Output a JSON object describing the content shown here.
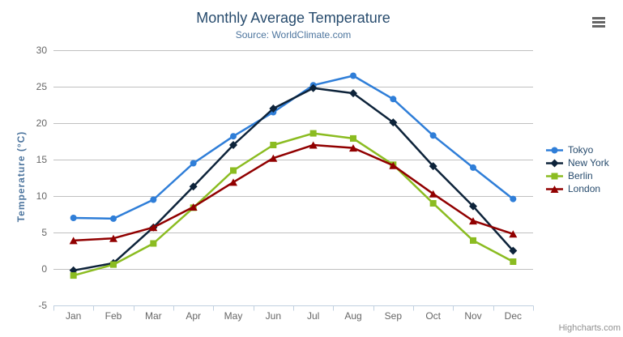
{
  "header": {
    "title": "Monthly Average Temperature",
    "subtitle": "Source: WorldClimate.com"
  },
  "chart_data": {
    "type": "line",
    "title": "Monthly Average Temperature",
    "subtitle": "Source: WorldClimate.com",
    "categories": [
      "Jan",
      "Feb",
      "Mar",
      "Apr",
      "May",
      "Jun",
      "Jul",
      "Aug",
      "Sep",
      "Oct",
      "Nov",
      "Dec"
    ],
    "series": [
      {
        "name": "Tokyo",
        "marker": "circle",
        "color": "#2f7ed8",
        "values": [
          7.0,
          6.9,
          9.5,
          14.5,
          18.2,
          21.5,
          25.2,
          26.5,
          23.3,
          18.3,
          13.9,
          9.6
        ]
      },
      {
        "name": "New York",
        "marker": "diamond",
        "color": "#0d233a",
        "values": [
          -0.2,
          0.8,
          5.7,
          11.3,
          17.0,
          22.0,
          24.8,
          24.1,
          20.1,
          14.1,
          8.6,
          2.5
        ]
      },
      {
        "name": "Berlin",
        "marker": "square",
        "color": "#8bbc21",
        "values": [
          -0.9,
          0.6,
          3.5,
          8.4,
          13.5,
          17.0,
          18.6,
          17.9,
          14.3,
          9.0,
          3.9,
          1.0
        ]
      },
      {
        "name": "London",
        "marker": "triangle",
        "color": "#910000",
        "values": [
          3.9,
          4.2,
          5.7,
          8.5,
          11.9,
          15.2,
          17.0,
          16.6,
          14.2,
          10.3,
          6.6,
          4.8
        ]
      }
    ],
    "xlabel": "",
    "ylabel": "Temperature (°C)",
    "ylim": [
      -5,
      30
    ],
    "yticks": [
      -5,
      0,
      5,
      10,
      15,
      20,
      25,
      30
    ],
    "grid": true,
    "legend_position": "right"
  },
  "icons": {
    "export_menu": "hamburger-icon"
  },
  "credit": {
    "label": "Highcharts.com"
  },
  "colors": {
    "background": "#ffffff",
    "title": "#274b6d",
    "subtitle": "#4d759e",
    "axis_title": "#4d759e",
    "tick_label": "#666666",
    "grid_line": "#c0c0c0",
    "axis_line": "#c0d0e0",
    "legend_text": "#274b6d",
    "credit_text": "#909090",
    "menu_icon": "#666666"
  }
}
